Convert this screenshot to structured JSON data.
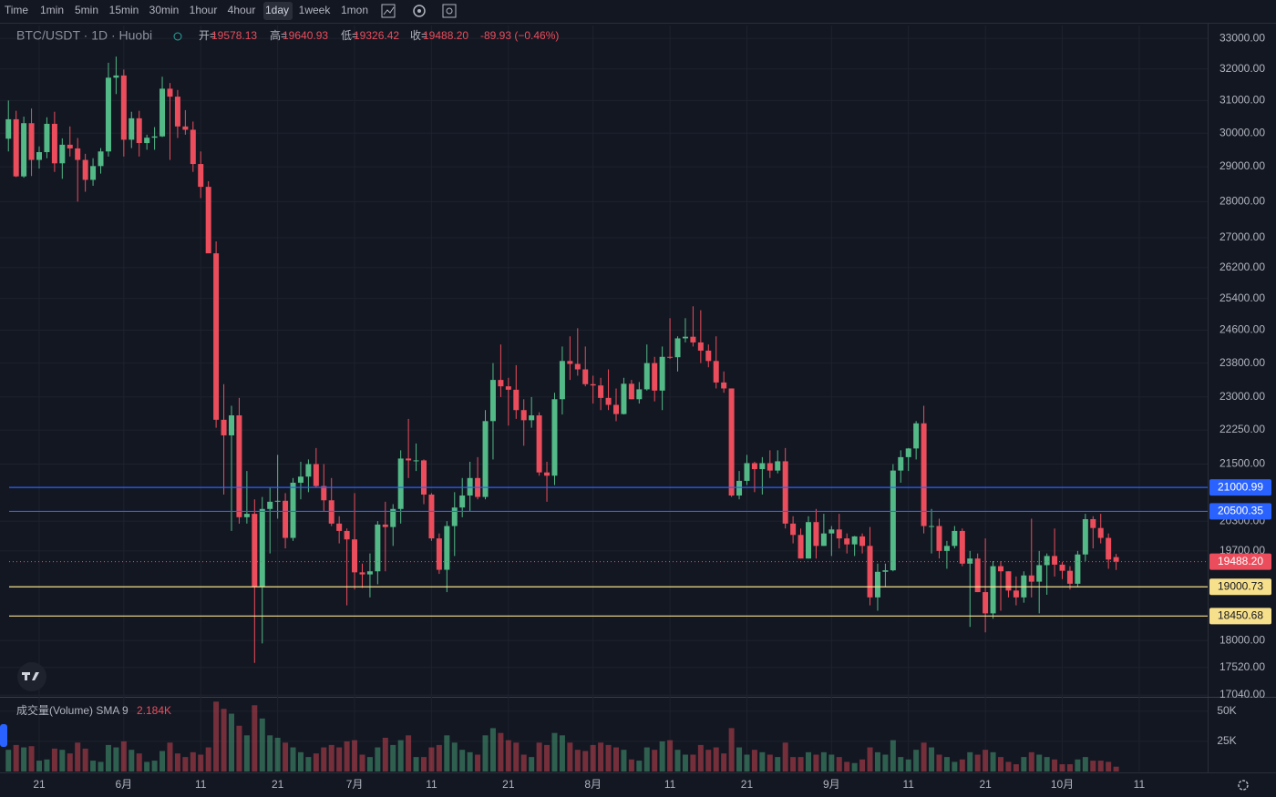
{
  "toolbar": {
    "intervals": [
      {
        "label": "Time",
        "active": false
      },
      {
        "label": "1min",
        "active": false
      },
      {
        "label": "5min",
        "active": false
      },
      {
        "label": "15min",
        "active": false
      },
      {
        "label": "30min",
        "active": false
      },
      {
        "label": "1hour",
        "active": false
      },
      {
        "label": "4hour",
        "active": false
      },
      {
        "label": "1day",
        "active": true
      },
      {
        "label": "1week",
        "active": false
      },
      {
        "label": "1mon",
        "active": false
      }
    ]
  },
  "legend": {
    "symbol": "BTC/USDT · 1D · Huobi",
    "open_label": "开=",
    "open": "19578.13",
    "high_label": "高=",
    "high": "19640.93",
    "low_label": "低=",
    "low": "19326.42",
    "close_label": "收=",
    "close": "19488.20",
    "change": "-89.93 (−0.46%)"
  },
  "volume_legend": {
    "name": "成交量(Volume) SMA 9",
    "value": "2.184K"
  },
  "chart_data": {
    "type": "candlestick",
    "log_scale": true,
    "grid": true,
    "up_color": "#53b987",
    "down_color": "#eb4d5c",
    "categories": [
      null,
      null,
      null,
      null,
      "21",
      null,
      null,
      null,
      null,
      null,
      null,
      null,
      null,
      null,
      null,
      "6月",
      null,
      null,
      null,
      null,
      null,
      null,
      null,
      null,
      null,
      "11",
      null,
      null,
      null,
      null,
      null,
      null,
      null,
      null,
      null,
      "21",
      null,
      null,
      null,
      null,
      null,
      null,
      null,
      null,
      null,
      "7月",
      null,
      null,
      null,
      null,
      null,
      null,
      null,
      null,
      null,
      "11",
      null,
      null,
      null,
      null,
      null,
      null,
      null,
      null,
      null,
      "21",
      null,
      null,
      null,
      null,
      null,
      null,
      null,
      null,
      null,
      null,
      "8月",
      null,
      null,
      null,
      null,
      null,
      null,
      null,
      null,
      null,
      "11",
      null,
      null,
      null,
      null,
      null,
      null,
      null,
      null,
      null,
      "21",
      null,
      null,
      null,
      null,
      null,
      null,
      null,
      null,
      null,
      null,
      "9月",
      null,
      null,
      null,
      null,
      null,
      null,
      null,
      null,
      null,
      "11",
      null,
      null,
      null,
      null,
      null,
      null,
      null,
      null,
      null,
      "21",
      null,
      null,
      null,
      null,
      null,
      null,
      null,
      null,
      null,
      "10月",
      null,
      null,
      null,
      null,
      null,
      null,
      null,
      null,
      null,
      "11"
    ],
    "ohlc": [
      [
        29830,
        31000,
        29450,
        30420
      ],
      [
        30420,
        30680,
        28700,
        28720
      ],
      [
        28720,
        30500,
        28680,
        30300
      ],
      [
        30300,
        30750,
        28730,
        29200
      ],
      [
        29200,
        29600,
        28950,
        29430
      ],
      [
        29430,
        30480,
        29250,
        30280
      ],
      [
        30280,
        30650,
        28850,
        29100
      ],
      [
        29100,
        29840,
        28650,
        29650
      ],
      [
        29650,
        30200,
        29300,
        29540
      ],
      [
        29540,
        29850,
        28000,
        29200
      ],
      [
        29200,
        29380,
        28280,
        28620
      ],
      [
        28620,
        29250,
        28450,
        29020
      ],
      [
        29020,
        29550,
        28800,
        29450
      ],
      [
        29450,
        32200,
        29300,
        31720
      ],
      [
        31720,
        32400,
        31200,
        31790
      ],
      [
        31790,
        31980,
        29300,
        29800
      ],
      [
        29800,
        30650,
        29550,
        30450
      ],
      [
        30450,
        30680,
        29300,
        29700
      ],
      [
        29700,
        29950,
        29500,
        29860
      ],
      [
        29860,
        30180,
        29500,
        29900
      ],
      [
        29900,
        31750,
        29880,
        31370
      ],
      [
        31370,
        31550,
        29200,
        31120
      ],
      [
        31120,
        31330,
        29850,
        30200
      ],
      [
        30200,
        30700,
        29950,
        30100
      ],
      [
        30100,
        30350,
        28850,
        29080
      ],
      [
        29080,
        29450,
        28100,
        28420
      ],
      [
        28420,
        28580,
        26600,
        26580
      ],
      [
        26580,
        26900,
        22300,
        22480
      ],
      [
        22480,
        23300,
        20850,
        22130
      ],
      [
        22130,
        22800,
        20100,
        22580
      ],
      [
        22580,
        22980,
        20250,
        20380
      ],
      [
        20380,
        21350,
        20250,
        20450
      ],
      [
        20450,
        20750,
        17600,
        19000
      ],
      [
        19000,
        20800,
        17950,
        20550
      ],
      [
        20550,
        21000,
        19650,
        20700
      ],
      [
        20700,
        21700,
        20350,
        20720
      ],
      [
        20720,
        20880,
        19750,
        19960
      ],
      [
        19960,
        21200,
        19900,
        21100
      ],
      [
        21100,
        21550,
        20750,
        21230
      ],
      [
        21230,
        21600,
        20900,
        21500
      ],
      [
        21500,
        21850,
        21000,
        21030
      ],
      [
        21030,
        21500,
        20500,
        20730
      ],
      [
        20730,
        21200,
        20200,
        20250
      ],
      [
        20250,
        20400,
        19850,
        20100
      ],
      [
        20100,
        20150,
        18650,
        19930
      ],
      [
        19930,
        20880,
        18950,
        19280
      ],
      [
        19280,
        19450,
        18980,
        19240
      ],
      [
        19240,
        19650,
        18800,
        19300
      ],
      [
        19300,
        20300,
        19050,
        20230
      ],
      [
        20230,
        20700,
        19300,
        20180
      ],
      [
        20180,
        20650,
        19800,
        20550
      ],
      [
        20550,
        21800,
        20250,
        21620
      ],
      [
        21620,
        22500,
        21200,
        21580
      ],
      [
        21580,
        21950,
        21350,
        21580
      ],
      [
        21580,
        21600,
        20650,
        20850
      ],
      [
        20850,
        20880,
        19900,
        19950
      ],
      [
        19950,
        20050,
        19250,
        19330
      ],
      [
        19330,
        20300,
        18900,
        20200
      ],
      [
        20200,
        20900,
        19600,
        20580
      ],
      [
        20580,
        21200,
        20380,
        20830
      ],
      [
        20830,
        21550,
        20500,
        21200
      ],
      [
        21200,
        21650,
        20750,
        20800
      ],
      [
        20800,
        22700,
        20750,
        22450
      ],
      [
        22450,
        23800,
        21600,
        23400
      ],
      [
        23400,
        24250,
        23000,
        23250
      ],
      [
        23250,
        23450,
        22350,
        23170
      ],
      [
        23170,
        23750,
        22500,
        22700
      ],
      [
        22700,
        22950,
        21900,
        22470
      ],
      [
        22470,
        23000,
        22300,
        22580
      ],
      [
        22580,
        22650,
        21250,
        21320
      ],
      [
        21320,
        21550,
        20700,
        21250
      ],
      [
        21250,
        23100,
        21050,
        22950
      ],
      [
        22950,
        24200,
        22600,
        23850
      ],
      [
        23850,
        24450,
        23400,
        23780
      ],
      [
        23780,
        24650,
        23500,
        23650
      ],
      [
        23650,
        24200,
        23250,
        23300
      ],
      [
        23300,
        23500,
        22850,
        23270
      ],
      [
        23270,
        23450,
        22700,
        22980
      ],
      [
        22980,
        23650,
        22700,
        22820
      ],
      [
        22820,
        23200,
        22450,
        22610
      ],
      [
        22610,
        23450,
        22600,
        23310
      ],
      [
        23310,
        23400,
        22950,
        22950
      ],
      [
        22950,
        23350,
        22850,
        23180
      ],
      [
        23180,
        24250,
        23150,
        23800
      ],
      [
        23800,
        23950,
        22900,
        23150
      ],
      [
        23150,
        24200,
        22700,
        23950
      ],
      [
        23950,
        24900,
        23900,
        23940
      ],
      [
        23940,
        24450,
        23600,
        24400
      ],
      [
        24400,
        24900,
        24300,
        24440
      ],
      [
        24440,
        25200,
        24200,
        24300
      ],
      [
        24300,
        25100,
        23800,
        24100
      ],
      [
        24100,
        24250,
        23700,
        23850
      ],
      [
        23850,
        24450,
        23200,
        23340
      ],
      [
        23340,
        23600,
        23100,
        23200
      ],
      [
        23200,
        23200,
        20800,
        20830
      ],
      [
        20830,
        21350,
        20750,
        21140
      ],
      [
        21140,
        21700,
        21050,
        21520
      ],
      [
        21520,
        21550,
        20900,
        21390
      ],
      [
        21390,
        21650,
        20850,
        21520
      ],
      [
        21520,
        21800,
        21200,
        21360
      ],
      [
        21360,
        21800,
        21300,
        21560
      ],
      [
        21560,
        21850,
        20150,
        20250
      ],
      [
        20250,
        20400,
        19850,
        20020
      ],
      [
        20020,
        20150,
        19550,
        19550
      ],
      [
        19550,
        20400,
        19550,
        20280
      ],
      [
        20280,
        20550,
        19550,
        19800
      ],
      [
        19800,
        20450,
        19800,
        20050
      ],
      [
        20050,
        20200,
        19600,
        20130
      ],
      [
        20130,
        20450,
        19750,
        19950
      ],
      [
        19950,
        20050,
        19650,
        19830
      ],
      [
        19830,
        20000,
        19600,
        19990
      ],
      [
        19990,
        20050,
        19650,
        19800
      ],
      [
        19800,
        20180,
        18650,
        18800
      ],
      [
        18800,
        19450,
        18550,
        19290
      ],
      [
        19290,
        19450,
        19000,
        19320
      ],
      [
        19320,
        21500,
        19300,
        21360
      ],
      [
        21360,
        21800,
        21100,
        21650
      ],
      [
        21650,
        21850,
        21350,
        21840
      ],
      [
        21840,
        22450,
        21600,
        22400
      ],
      [
        22400,
        22800,
        20050,
        20200
      ],
      [
        20200,
        20550,
        19650,
        20200
      ],
      [
        20200,
        20350,
        19550,
        19700
      ],
      [
        19700,
        19900,
        19350,
        19800
      ],
      [
        19800,
        20200,
        19750,
        20100
      ],
      [
        20100,
        20150,
        19400,
        19450
      ],
      [
        19450,
        19700,
        18250,
        19550
      ],
      [
        19550,
        19650,
        18900,
        18900
      ],
      [
        18900,
        19950,
        18150,
        18500
      ],
      [
        18500,
        19500,
        18400,
        19400
      ],
      [
        19400,
        19500,
        18550,
        19300
      ],
      [
        19300,
        19300,
        18800,
        18930
      ],
      [
        18930,
        19200,
        18650,
        18800
      ],
      [
        18800,
        19300,
        18700,
        19220
      ],
      [
        19220,
        20350,
        18800,
        19100
      ],
      [
        19100,
        19700,
        18500,
        19420
      ],
      [
        19420,
        19650,
        18850,
        19600
      ],
      [
        19600,
        20150,
        19200,
        19430
      ],
      [
        19430,
        19480,
        19150,
        19310
      ],
      [
        19310,
        19400,
        18950,
        19060
      ],
      [
        19060,
        19700,
        19000,
        19630
      ],
      [
        19630,
        20450,
        19500,
        20340
      ],
      [
        20340,
        20400,
        19750,
        20160
      ],
      [
        20160,
        20450,
        19850,
        19960
      ],
      [
        19960,
        20050,
        19350,
        19530
      ],
      [
        19578.13,
        19640.93,
        19326.42,
        19488.2
      ],
      null,
      null,
      null
    ],
    "volume": [
      18000,
      22000,
      20000,
      21000,
      9000,
      10000,
      19000,
      18000,
      15000,
      24000,
      19000,
      9000,
      8000,
      22000,
      20000,
      25000,
      18000,
      15000,
      8000,
      9000,
      17000,
      24000,
      15000,
      12000,
      16000,
      14000,
      20000,
      58000,
      52000,
      48000,
      38000,
      30000,
      55000,
      44000,
      30000,
      28000,
      24000,
      20000,
      16000,
      12000,
      15000,
      20000,
      22000,
      20000,
      25000,
      26000,
      14000,
      12000,
      20000,
      28000,
      22000,
      26000,
      30000,
      12000,
      12000,
      20000,
      22000,
      30000,
      24000,
      18000,
      16000,
      14000,
      30000,
      36000,
      32000,
      26000,
      24000,
      14000,
      12000,
      24000,
      22000,
      32000,
      30000,
      24000,
      18000,
      17000,
      22000,
      24000,
      22000,
      20000,
      18000,
      10000,
      9000,
      20000,
      18000,
      25000,
      26000,
      18000,
      14000,
      14000,
      22000,
      18000,
      20000,
      15000,
      36000,
      20000,
      14000,
      18000,
      16000,
      14000,
      12000,
      24000,
      12000,
      12000,
      16000,
      14000,
      16000,
      14000,
      12000,
      8000,
      7000,
      10000,
      20000,
      16000,
      14000,
      26000,
      12000,
      10000,
      18000,
      24000,
      20000,
      14000,
      12000,
      8000,
      10000,
      16000,
      14000,
      18000,
      16000,
      12000,
      8000,
      6000,
      12000,
      16000,
      14000,
      12000,
      10000,
      6000,
      6000,
      10000,
      12000,
      9000,
      9000,
      8000,
      4000,
      null,
      null,
      null
    ],
    "ylim": [
      17010,
      33430
    ],
    "yticks": [
      {
        "value": 33000,
        "label": "33000.00"
      },
      {
        "value": 32000,
        "label": "32000.00"
      },
      {
        "value": 31000,
        "label": "31000.00"
      },
      {
        "value": 30000,
        "label": "30000.00"
      },
      {
        "value": 29000,
        "label": "29000.00"
      },
      {
        "value": 28000,
        "label": "28000.00"
      },
      {
        "value": 27000,
        "label": "27000.00"
      },
      {
        "value": 26200,
        "label": "26200.00"
      },
      {
        "value": 25400,
        "label": "25400.00"
      },
      {
        "value": 24600,
        "label": "24600.00"
      },
      {
        "value": 23800,
        "label": "23800.00"
      },
      {
        "value": 23000,
        "label": "23000.00"
      },
      {
        "value": 22250,
        "label": "22250.00"
      },
      {
        "value": 21500,
        "label": "21500.00"
      },
      {
        "value": 20300,
        "label": "20300.00"
      },
      {
        "value": 19700,
        "label": "19700.00"
      },
      {
        "value": 18000,
        "label": "18000.00"
      },
      {
        "value": 17520,
        "label": "17520.00"
      },
      {
        "value": 17040,
        "label": "17040.00"
      }
    ],
    "volume_ylim": [
      0,
      62000
    ],
    "volume_ticks": [
      {
        "value": 50000,
        "label": "50K"
      },
      {
        "value": 25000,
        "label": "25K"
      }
    ],
    "price_lines": [
      {
        "value": 21000.99,
        "color": "#2962ff"
      },
      {
        "value": 20500.35,
        "color": "#2962ff"
      },
      {
        "value": 19000.73,
        "color": "#f7e08b"
      },
      {
        "value": 18450.68,
        "color": "#f7e08b"
      }
    ],
    "last_price": {
      "value": 19488.2,
      "label": "19488.20",
      "color": "#eb4d5c"
    }
  }
}
